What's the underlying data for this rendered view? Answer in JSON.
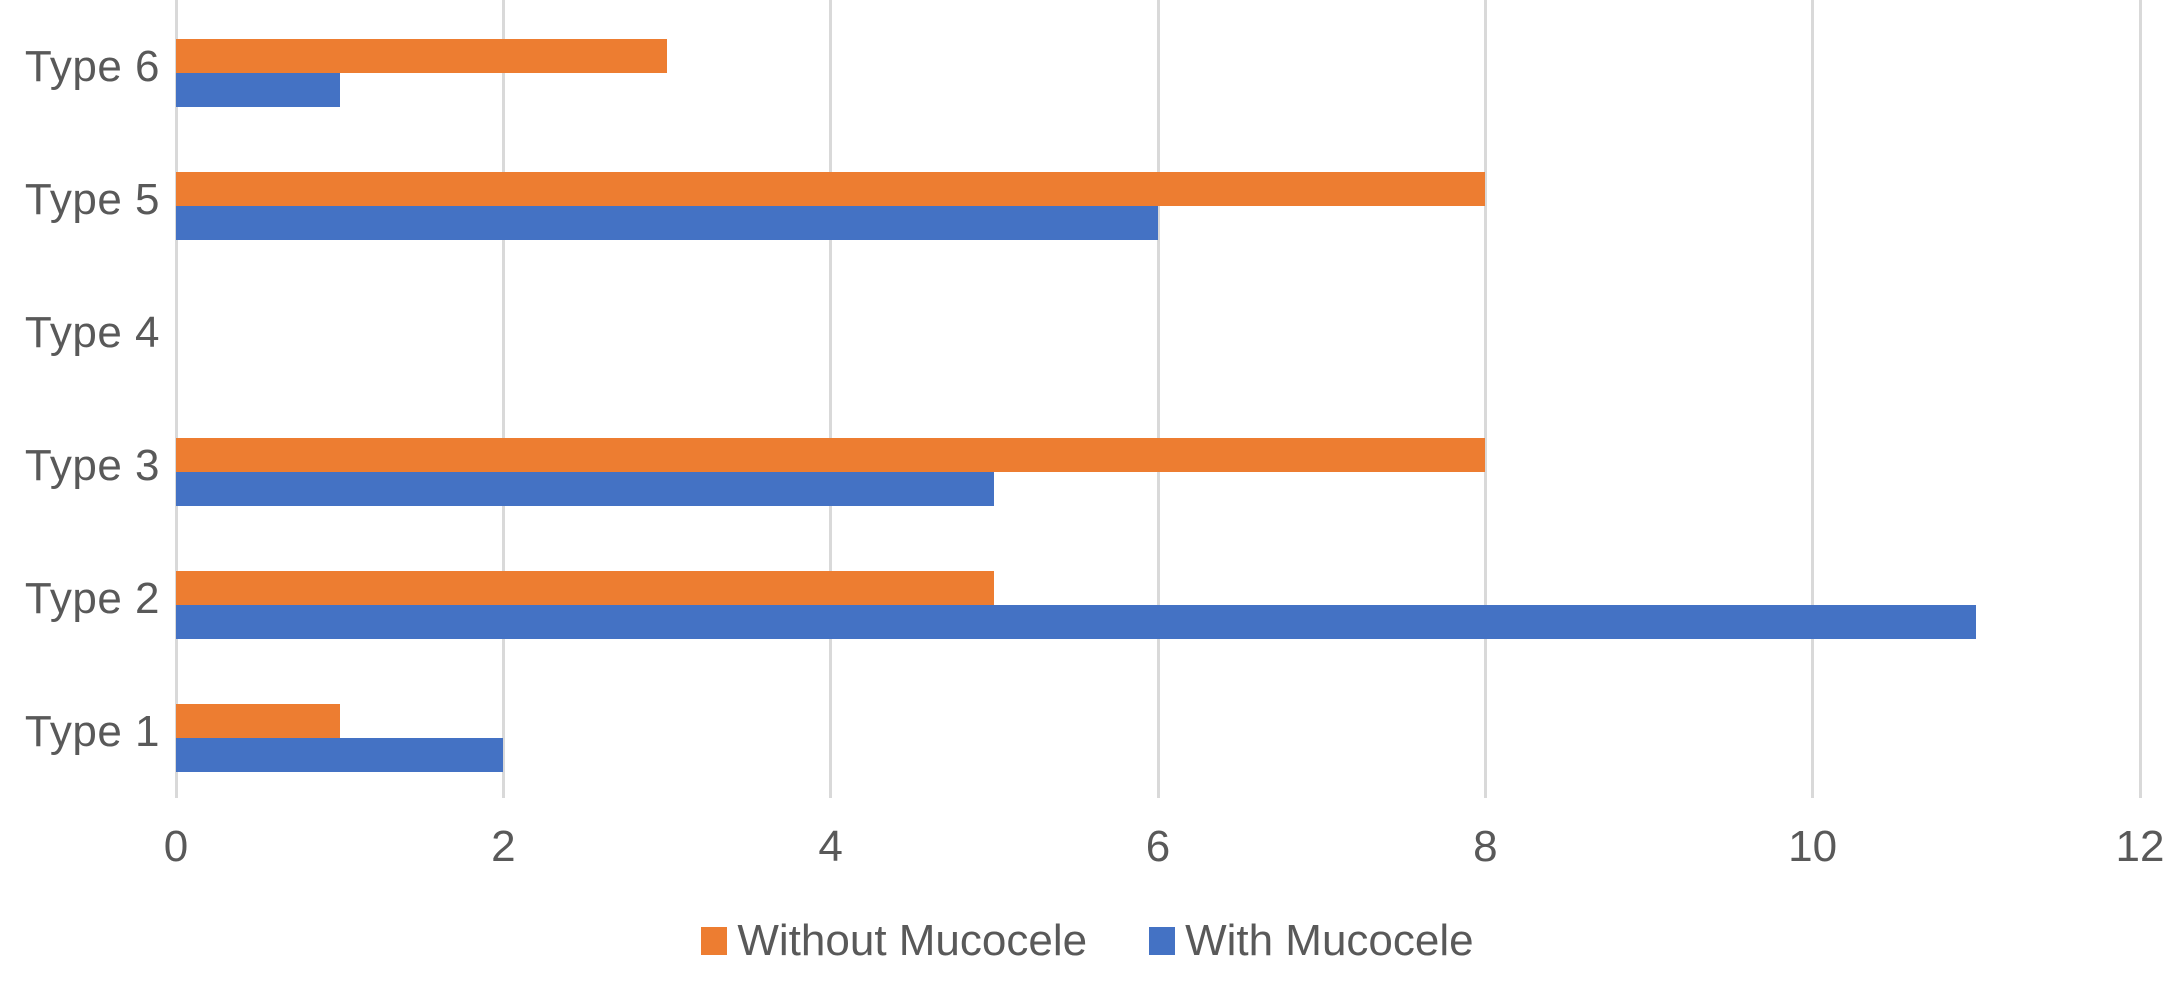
{
  "chart_data": {
    "type": "bar",
    "orientation": "horizontal",
    "title": "",
    "categories": [
      "Type 6",
      "Type 5",
      "Type 4",
      "Type 3",
      "Type 2",
      "Type 1"
    ],
    "series": [
      {
        "name": "Without Mucocele",
        "color": "#ED7D31",
        "values": [
          3,
          8,
          0,
          8,
          5,
          1
        ]
      },
      {
        "name": "With Mucocele",
        "color": "#4472C4",
        "values": [
          1,
          6,
          0,
          5,
          11,
          2
        ]
      }
    ],
    "xlim": [
      0,
      12
    ],
    "xticks": [
      0,
      2,
      4,
      6,
      8,
      10,
      12
    ],
    "grid": "vertical-gridlines-on",
    "gridline_color": "#D9D9D9",
    "label_color": "#595959",
    "background_color": "#FFFFFF",
    "legend_position": "bottom-center"
  }
}
